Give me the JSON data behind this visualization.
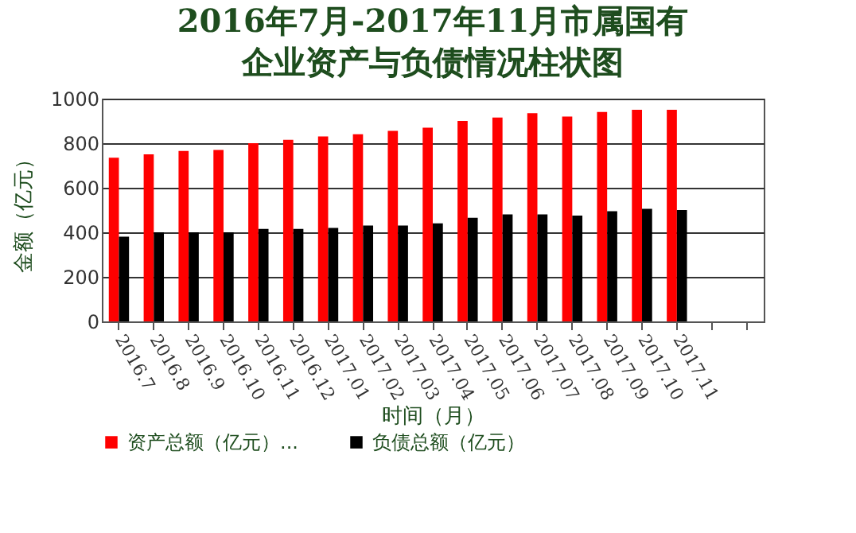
{
  "chart_data": {
    "type": "bar",
    "title": "2016年7月-2017年11月市属国有企业资产与负债情况柱状图",
    "xlabel": "时间（月）",
    "ylabel": "金额（亿元）",
    "categories": [
      "2016.7",
      "2016.8",
      "2016.9",
      "2016.10",
      "2016.11",
      "2016.12",
      "2017.01",
      "2017.02",
      "2017.03",
      "2017.04",
      "2017.05",
      "2017.06",
      "2017.07",
      "2017.08",
      "2017.09",
      "2017.10",
      "2017.11",
      null,
      null
    ],
    "series": [
      {
        "name": "资产总额（亿元）...",
        "color": "#ff0000",
        "values": [
          735,
          750,
          765,
          770,
          800,
          815,
          830,
          840,
          855,
          870,
          900,
          915,
          935,
          920,
          940,
          950,
          950,
          null,
          null
        ]
      },
      {
        "name": "负债总额（亿元）",
        "color": "#000000",
        "values": [
          380,
          400,
          400,
          400,
          415,
          415,
          420,
          430,
          430,
          440,
          465,
          480,
          480,
          475,
          495,
          505,
          500,
          null,
          null
        ]
      }
    ],
    "ylim": [
      0,
      1000
    ],
    "yticks": [
      0,
      200,
      400,
      600,
      800,
      1000
    ],
    "grid": "y",
    "legend": "bottom"
  }
}
